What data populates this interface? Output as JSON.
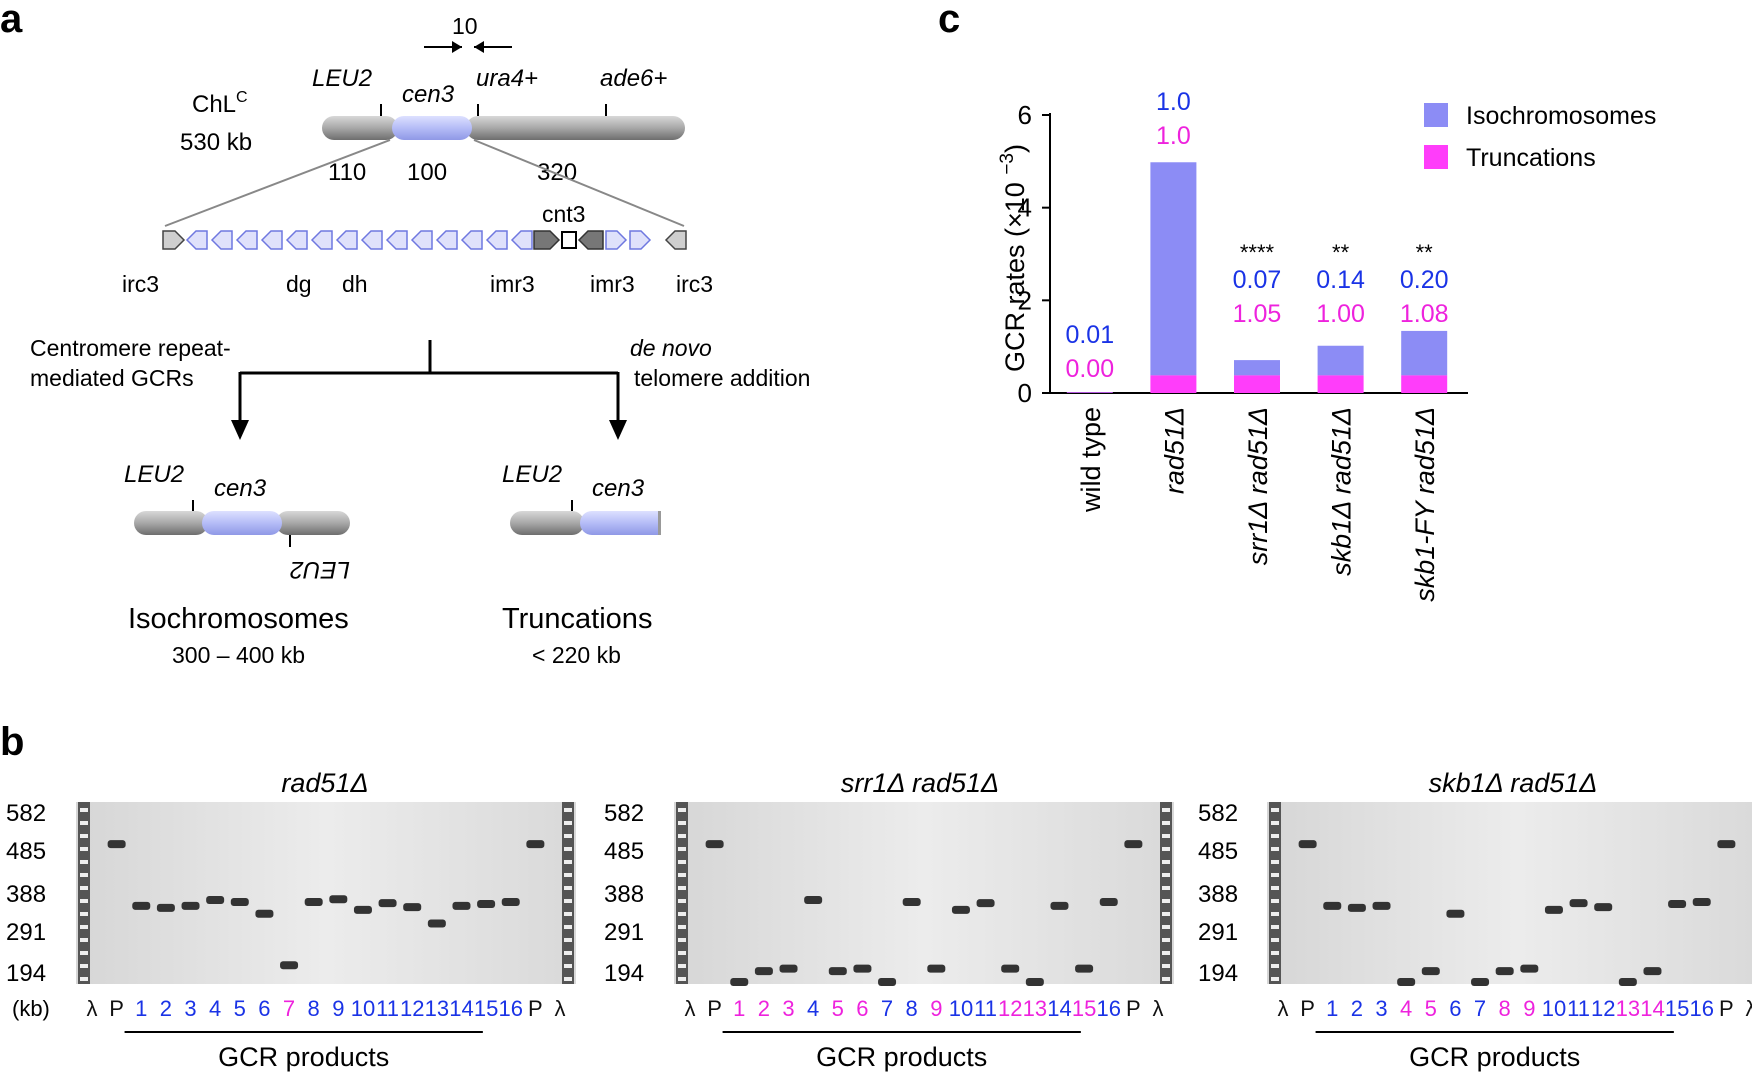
{
  "panels": {
    "a": "a",
    "b": "b",
    "c": "c"
  },
  "panel_a": {
    "chromosome_name": "ChL",
    "chromosome_superscript": "C",
    "chromosome_size": "530 kb",
    "leu2": "LEU2",
    "cen3": "cen3",
    "ura4": "ura4+",
    "ade6": "ade6+",
    "arrow_distance": "10",
    "seg_left": "110",
    "seg_mid": "100",
    "seg_right": "320",
    "cnt3": "cnt3",
    "irc3_left": "irc3",
    "dg": "dg",
    "dh": "dh",
    "imr3_left": "imr3",
    "imr3_right": "imr3",
    "irc3_right": "irc3",
    "path_left_line1": "Centromere repeat-",
    "path_left_line2": "mediated GCRs",
    "path_right_line1": "de novo",
    "path_right_line2": "telomere addition",
    "iso_leu2_top": "LEU2",
    "iso_cen3": "cen3",
    "iso_leu2_mirror": "LEU2",
    "iso_label": "Isochromosomes",
    "iso_size": "300 – 400 kb",
    "trunc_leu2": "LEU2",
    "trunc_cen3": "cen3",
    "trunc_label": "Truncations",
    "trunc_size": "< 220 kb"
  },
  "panel_b": {
    "kb_label": "(kb)",
    "size_markers": [
      "582",
      "485",
      "388",
      "291",
      "194"
    ],
    "lambda": "λ",
    "parent": "P",
    "products_label": "GCR products",
    "gels": [
      {
        "title": "rad51Δ",
        "lanes": [
          "1",
          "2",
          "3",
          "4",
          "5",
          "6",
          "7",
          "8",
          "9",
          "10",
          "11",
          "12",
          "13",
          "14",
          "15",
          "16"
        ],
        "types": [
          "i",
          "i",
          "i",
          "i",
          "i",
          "i",
          "t",
          "i",
          "i",
          "i",
          "i",
          "i",
          "i",
          "i",
          "i",
          "i"
        ]
      },
      {
        "title": "srr1Δ rad51Δ",
        "lanes": [
          "1",
          "2",
          "3",
          "4",
          "5",
          "6",
          "7",
          "8",
          "9",
          "10",
          "11",
          "12",
          "13",
          "14",
          "15",
          "16"
        ],
        "types": [
          "t",
          "t",
          "t",
          "i",
          "t",
          "t",
          "i",
          "i",
          "t",
          "i",
          "i",
          "t",
          "t",
          "i",
          "t",
          "i"
        ]
      },
      {
        "title": "skb1Δ rad51Δ",
        "lanes": [
          "1",
          "2",
          "3",
          "4",
          "5",
          "6",
          "7",
          "8",
          "9",
          "10",
          "11",
          "12",
          "13",
          "14",
          "15",
          "16"
        ],
        "types": [
          "i",
          "i",
          "i",
          "t",
          "t",
          "i",
          "i",
          "t",
          "t",
          "i",
          "i",
          "i",
          "t",
          "t",
          "i",
          "i"
        ]
      }
    ]
  },
  "chart_data": {
    "type": "bar",
    "stacked": true,
    "categories": [
      "wild type",
      "rad51Δ",
      "srr1Δ rad51Δ",
      "skb1Δ rad51Δ",
      "skb1-FY rad51Δ"
    ],
    "series": [
      {
        "name": "Truncations",
        "color": "#ff3dfa",
        "values": [
          0.01,
          0.38,
          0.38,
          0.38,
          0.38
        ]
      },
      {
        "name": "Isochromosomes",
        "color": "#8c8cf5",
        "values": [
          0.01,
          4.6,
          0.33,
          0.64,
          0.96
        ]
      }
    ],
    "ylabel": "GCR rates (×10",
    "ylabel_exp": "−3",
    "ylabel_close": ")",
    "ylim": [
      0,
      6
    ],
    "yticks": [
      "0",
      "2",
      "4",
      "6"
    ],
    "iso_labels": [
      "0.01",
      "1.0",
      "0.07",
      "0.14",
      "0.20"
    ],
    "trunc_labels": [
      "0.00",
      "1.0",
      "1.05",
      "1.00",
      "1.08"
    ],
    "significance": [
      "",
      "",
      "****",
      "**",
      "**"
    ],
    "legend": [
      "Isochromosomes",
      "Truncations"
    ],
    "legend_position": "top-right",
    "iso_color": "#1a33e6",
    "trunc_color": "#ee22dd"
  }
}
